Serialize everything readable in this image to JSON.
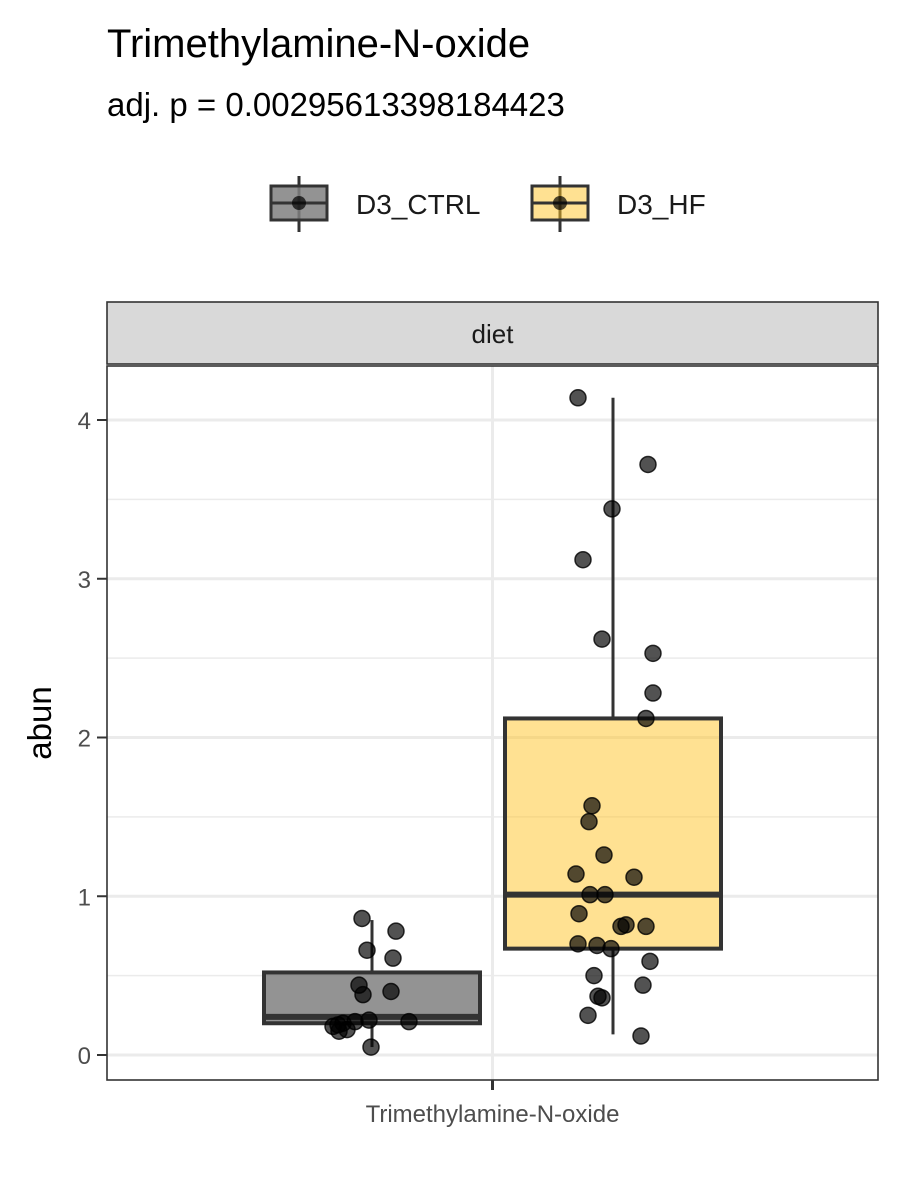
{
  "chart_data": {
    "type": "box",
    "title": "Trimethylamine-N-oxide",
    "subtitle": "adj. p = 0.00295613398184423",
    "facet_label": "diet",
    "xlabel": "",
    "ylabel": "abun",
    "categories": [
      "Trimethylamine-N-oxide"
    ],
    "ylim": [
      -0.15,
      4.35
    ],
    "yticks": [
      0,
      1,
      2,
      3,
      4
    ],
    "legend_position": "top",
    "grid": true,
    "series": [
      {
        "name": "D3_CTRL",
        "color": "#808080",
        "box": {
          "whisker_low": 0.05,
          "q1": 0.2,
          "median": 0.24,
          "q3": 0.52,
          "whisker_high": 0.85
        },
        "points": [
          0.86,
          0.78,
          0.66,
          0.61,
          0.44,
          0.4,
          0.38,
          0.22,
          0.21,
          0.21,
          0.2,
          0.19,
          0.18,
          0.16,
          0.15,
          0.05
        ]
      },
      {
        "name": "D3_HF",
        "color": "#FFC425",
        "box": {
          "whisker_low": 0.13,
          "q1": 0.67,
          "median": 1.01,
          "q3": 2.12,
          "whisker_high": 4.14
        },
        "points": [
          4.14,
          3.72,
          3.44,
          3.12,
          2.62,
          2.53,
          2.28,
          2.12,
          1.57,
          1.47,
          1.26,
          1.14,
          1.12,
          1.01,
          1.01,
          0.89,
          0.82,
          0.81,
          0.81,
          0.7,
          0.69,
          0.67,
          0.59,
          0.5,
          0.44,
          0.37,
          0.36,
          0.25,
          0.12
        ]
      }
    ]
  }
}
